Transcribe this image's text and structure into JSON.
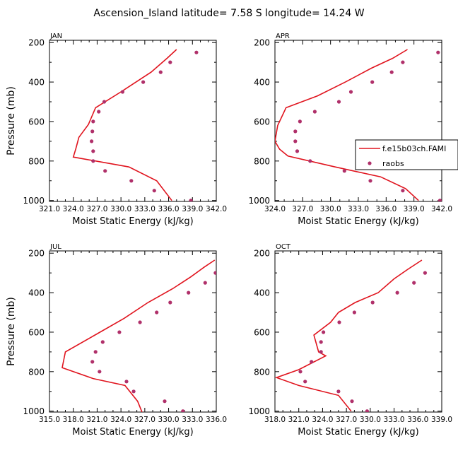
{
  "figure": {
    "title": "Ascension_Island  latitude= 7.58 S longitude= 14.24 W"
  },
  "legend": {
    "model_label": "f.e15b03ch.FAMI",
    "obs_label": "raobs",
    "placement": "right of APR panel"
  },
  "colors": {
    "model_line": "#e0141e",
    "obs_marker": "#b0306a",
    "axis": "#000000"
  },
  "chart_data": [
    {
      "type": "line",
      "panel": "JAN",
      "title": "JAN",
      "xlabel": "Moist Static Energy (kJ/kg)",
      "ylabel": "Pressure (mb)",
      "xlim": [
        321.0,
        342.0
      ],
      "ylim": [
        1000,
        200
      ],
      "xticks": [
        "321.0",
        "324.0",
        "327.0",
        "330.0",
        "333.0",
        "336.0",
        "339.0",
        "342.0"
      ],
      "yticks": [
        "200",
        "400",
        "600",
        "800",
        "1000"
      ],
      "series": [
        {
          "name": "f.e15b03ch.FAMI",
          "kind": "line",
          "x": [
            337.0,
            335.8,
            333.8,
            330.0,
            326.8,
            325.9,
            324.7,
            324.3,
            324.0,
            331.0,
            334.5,
            336.4
          ],
          "y": [
            235,
            280,
            350,
            450,
            530,
            615,
            680,
            740,
            780,
            830,
            900,
            1000
          ]
        },
        {
          "name": "raobs",
          "kind": "scatter",
          "x": [
            339.5,
            336.2,
            335.0,
            332.8,
            330.2,
            327.9,
            327.2,
            326.5,
            326.4,
            326.3,
            326.5,
            326.5,
            328.0,
            331.3,
            334.2,
            338.8
          ],
          "y": [
            250,
            300,
            350,
            400,
            450,
            500,
            550,
            600,
            650,
            700,
            750,
            800,
            850,
            900,
            950,
            1000
          ]
        }
      ]
    },
    {
      "type": "line",
      "panel": "APR",
      "title": "APR",
      "xlabel": "Moist Static Energy (kJ/kg)",
      "ylabel": "Pressure (mb)",
      "xlim": [
        324.0,
        342.0
      ],
      "ylim": [
        1000,
        200
      ],
      "xticks": [
        "324.0",
        "327.0",
        "330.0",
        "333.0",
        "336.0",
        "339.0",
        "342.0"
      ],
      "yticks": [
        "200",
        "400",
        "600",
        "800",
        "1000"
      ],
      "series": [
        {
          "name": "f.e15b03ch.FAMI",
          "kind": "line",
          "x": [
            338.3,
            336.7,
            334.4,
            331.6,
            328.6,
            325.2,
            324.3,
            324.0,
            324.5,
            325.4,
            330.5,
            335.4,
            338.1,
            339.5
          ],
          "y": [
            235,
            280,
            330,
            400,
            470,
            530,
            620,
            700,
            740,
            775,
            830,
            880,
            940,
            1000
          ]
        },
        {
          "name": "raobs",
          "kind": "scatter",
          "x": [
            341.6,
            337.8,
            336.6,
            334.5,
            332.2,
            330.9,
            328.3,
            326.7,
            326.2,
            326.2,
            326.4,
            327.8,
            331.5,
            334.3,
            337.8,
            341.8
          ],
          "y": [
            250,
            300,
            350,
            400,
            450,
            500,
            550,
            600,
            650,
            700,
            750,
            800,
            850,
            900,
            950,
            1000
          ]
        }
      ]
    },
    {
      "type": "line",
      "panel": "JUL",
      "title": "JUL",
      "xlabel": "Moist Static Energy (kJ/kg)",
      "ylabel": "Pressure (mb)",
      "xlim": [
        315.0,
        336.0
      ],
      "ylim": [
        1000,
        200
      ],
      "xticks": [
        "315.0",
        "318.0",
        "321.0",
        "324.0",
        "327.0",
        "330.0",
        "333.0",
        "336.0"
      ],
      "yticks": [
        "200",
        "400",
        "600",
        "800",
        "1000"
      ],
      "series": [
        {
          "name": "f.e15b03ch.FAMI",
          "kind": "line",
          "x": [
            335.8,
            334.5,
            332.8,
            330.5,
            327.4,
            324.4,
            320.5,
            317.0,
            316.6,
            320.5,
            324.5,
            326.1,
            326.7
          ],
          "y": [
            235,
            270,
            320,
            380,
            450,
            530,
            620,
            700,
            780,
            835,
            870,
            950,
            1010
          ]
        },
        {
          "name": "raobs",
          "kind": "scatter",
          "x": [
            335.9,
            334.6,
            332.5,
            330.2,
            328.5,
            326.4,
            323.8,
            321.7,
            320.8,
            320.4,
            321.3,
            324.7,
            325.6,
            329.5,
            331.8
          ],
          "y": [
            300,
            350,
            400,
            450,
            500,
            550,
            600,
            650,
            700,
            750,
            800,
            850,
            900,
            950,
            1000
          ]
        }
      ]
    },
    {
      "type": "line",
      "panel": "OCT",
      "title": "OCT",
      "xlabel": "Moist Static Energy (kJ/kg)",
      "ylabel": "Pressure (mb)",
      "xlim": [
        318.0,
        339.0
      ],
      "ylim": [
        1000,
        200
      ],
      "xticks": [
        "318.0",
        "321.0",
        "324.0",
        "327.0",
        "330.0",
        "333.0",
        "336.0",
        "339.0"
      ],
      "yticks": [
        "200",
        "400",
        "600",
        "800",
        "1000"
      ],
      "series": [
        {
          "name": "f.e15b03ch.FAMI",
          "kind": "line",
          "x": [
            336.5,
            334.8,
            333.0,
            331.0,
            328.1,
            326.0,
            325.0,
            322.9,
            323.5,
            324.4,
            321.0,
            318.2,
            321.0,
            326.0,
            327.6
          ],
          "y": [
            235,
            280,
            330,
            400,
            450,
            500,
            550,
            615,
            700,
            720,
            790,
            830,
            870,
            920,
            1000
          ]
        },
        {
          "name": "raobs",
          "kind": "scatter",
          "x": [
            336.9,
            335.5,
            333.4,
            330.3,
            328.0,
            326.1,
            324.1,
            323.8,
            323.8,
            322.6,
            321.2,
            321.8,
            326.0,
            327.7,
            329.6
          ],
          "y": [
            300,
            350,
            400,
            450,
            500,
            550,
            600,
            650,
            700,
            750,
            800,
            850,
            900,
            950,
            1000
          ]
        }
      ]
    }
  ]
}
